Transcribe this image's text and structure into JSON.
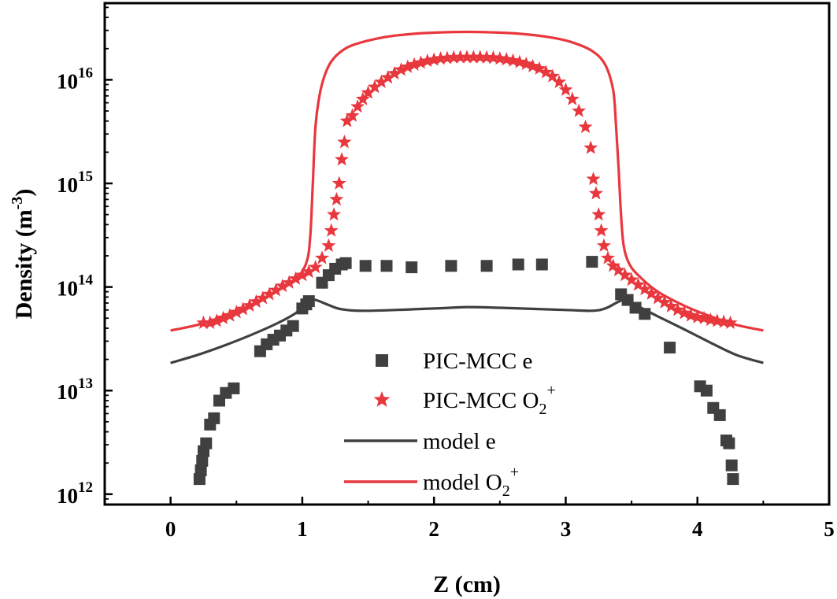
{
  "chart_data": {
    "type": "scatter",
    "title": "",
    "xlabel": "Z (cm)",
    "ylabel": "Density (m^-3)",
    "ylabel_parts": {
      "main": "Density (m",
      "sup": "-3",
      "close": ")"
    },
    "xlim": [
      -0.5,
      5
    ],
    "ylim_log10": [
      11.9,
      16.74
    ],
    "yscale": "log",
    "xticks": [
      0,
      1,
      2,
      3,
      4,
      5
    ],
    "xtick_labels": [
      "0",
      "1",
      "2",
      "3",
      "4",
      "5"
    ],
    "yticks_log10": [
      12,
      13,
      14,
      15,
      16
    ],
    "ytick_labels": [
      {
        "base": "10",
        "exp": "12"
      },
      {
        "base": "10",
        "exp": "13"
      },
      {
        "base": "10",
        "exp": "14"
      },
      {
        "base": "10",
        "exp": "15"
      },
      {
        "base": "10",
        "exp": "16"
      }
    ],
    "grid": false,
    "legend_position": "center",
    "colors": {
      "electron": "#404040",
      "ion": "#e8373d",
      "axis": "#000000"
    },
    "series": [
      {
        "name": "PIC-MCC e",
        "label_parts": {
          "main": "PIC-MCC e",
          "sub": "",
          "sup": ""
        },
        "kind": "markers",
        "marker": "square",
        "color": "#404040",
        "x": [
          0.22,
          0.23,
          0.24,
          0.25,
          0.27,
          0.3,
          0.33,
          0.37,
          0.42,
          0.48,
          0.68,
          0.73,
          0.78,
          0.83,
          0.88,
          0.93,
          1.0,
          1.03,
          1.05,
          1.15,
          1.2,
          1.25,
          1.3,
          1.33,
          1.48,
          1.64,
          1.83,
          2.13,
          2.4,
          2.64,
          2.82,
          3.2,
          3.42,
          3.47,
          3.53,
          3.6,
          3.79,
          4.02,
          4.07,
          4.12,
          4.17,
          4.22,
          4.24,
          4.26,
          4.27
        ],
        "y": [
          1400000000000.0,
          1700000000000.0,
          2100000000000.0,
          2600000000000.0,
          3100000000000.0,
          4700000000000.0,
          5400000000000.0,
          8000000000000.0,
          9500000000000.0,
          10500000000000.0,
          24000000000000.0,
          28000000000000.0,
          31000000000000.0,
          34000000000000.0,
          38000000000000.0,
          42000000000000.0,
          62000000000000.0,
          68000000000000.0,
          73000000000000.0,
          110000000000000.0,
          130000000000000.0,
          150000000000000.0,
          165000000000000.0,
          170000000000000.0,
          160000000000000.0,
          160000000000000.0,
          155000000000000.0,
          160000000000000.0,
          160000000000000.0,
          165000000000000.0,
          165000000000000.0,
          175000000000000.0,
          85000000000000.0,
          75000000000000.0,
          63000000000000.0,
          55000000000000.0,
          26000000000000.0,
          11000000000000.0,
          10000000000000.0,
          6800000000000.0,
          5800000000000.0,
          3300000000000.0,
          3100000000000.0,
          1900000000000.0,
          1400000000000.0
        ]
      },
      {
        "name": "PIC-MCC O2+",
        "label_parts": {
          "main": "PIC-MCC O",
          "sub": "2",
          "sup": "+"
        },
        "kind": "markers",
        "marker": "star",
        "color": "#e8373d",
        "x": [
          0.25,
          0.3,
          0.35,
          0.4,
          0.45,
          0.5,
          0.55,
          0.6,
          0.65,
          0.7,
          0.75,
          0.8,
          0.85,
          0.9,
          0.95,
          1.0,
          1.05,
          1.1,
          1.15,
          1.2,
          1.22,
          1.24,
          1.26,
          1.28,
          1.3,
          1.32,
          1.34,
          1.38,
          1.42,
          1.46,
          1.5,
          1.55,
          1.6,
          1.65,
          1.7,
          1.75,
          1.8,
          1.85,
          1.9,
          1.95,
          2.0,
          2.05,
          2.1,
          2.15,
          2.2,
          2.25,
          2.3,
          2.35,
          2.4,
          2.45,
          2.5,
          2.55,
          2.6,
          2.65,
          2.7,
          2.75,
          2.8,
          2.85,
          2.9,
          2.95,
          3.0,
          3.05,
          3.1,
          3.15,
          3.19,
          3.21,
          3.23,
          3.25,
          3.27,
          3.29,
          3.32,
          3.36,
          3.4,
          3.45,
          3.5,
          3.55,
          3.6,
          3.65,
          3.7,
          3.75,
          3.8,
          3.85,
          3.9,
          3.95,
          4.0,
          4.05,
          4.1,
          4.15,
          4.2,
          4.25
        ],
        "y": [
          45000000000000.0,
          45000000000000.0,
          47000000000000.0,
          50000000000000.0,
          53000000000000.0,
          57000000000000.0,
          61000000000000.0,
          66000000000000.0,
          72000000000000.0,
          78000000000000.0,
          85000000000000.0,
          93000000000000.0,
          102000000000000.0,
          110000000000000.0,
          120000000000000.0,
          130000000000000.0,
          140000000000000.0,
          155000000000000.0,
          190000000000000.0,
          250000000000000.0,
          350000000000000.0,
          500000000000000.0,
          700000000000000.0,
          1000000000000000.0,
          1700000000000000.0,
          2500000000000000.0,
          4000000000000000.0,
          4500000000000000.0,
          5500000000000000.0,
          6500000000000000.0,
          7500000000000000.0,
          8500000000000000.0,
          9500000000000000.0,
          1.05e+16,
          1.15e+16,
          1.25e+16,
          1.33e+16,
          1.4e+16,
          1.46e+16,
          1.52e+16,
          1.56e+16,
          1.6e+16,
          1.62e+16,
          1.64e+16,
          1.65e+16,
          1.65e+16,
          1.65e+16,
          1.65e+16,
          1.64e+16,
          1.63e+16,
          1.6e+16,
          1.57e+16,
          1.53e+16,
          1.48e+16,
          1.42e+16,
          1.35e+16,
          1.28e+16,
          1.18e+16,
          1.08e+16,
          9500000000000000.0,
          8000000000000000.0,
          6500000000000000.0,
          5000000000000000.0,
          3500000000000000.0,
          2200000000000000.0,
          1100000000000000.0,
          800000000000000.0,
          500000000000000.0,
          350000000000000.0,
          250000000000000.0,
          190000000000000.0,
          160000000000000.0,
          145000000000000.0,
          130000000000000.0,
          117000000000000.0,
          105000000000000.0,
          95000000000000.0,
          86000000000000.0,
          78000000000000.0,
          71000000000000.0,
          65000000000000.0,
          60000000000000.0,
          56000000000000.0,
          53000000000000.0,
          51000000000000.0,
          50000000000000.0,
          48000000000000.0,
          47000000000000.0,
          46000000000000.0,
          45000000000000.0
        ]
      },
      {
        "name": "model e",
        "label_parts": {
          "main": "model e",
          "sub": "",
          "sup": ""
        },
        "kind": "line",
        "color": "#404040",
        "x": [
          0.0,
          0.2,
          0.4,
          0.6,
          0.8,
          0.95,
          1.05,
          1.1,
          1.2,
          1.3,
          1.5,
          2.0,
          2.25,
          2.5,
          3.0,
          3.2,
          3.3,
          3.4,
          3.45,
          3.55,
          3.7,
          3.9,
          4.1,
          4.3,
          4.5
        ],
        "y": [
          18500000000000.0,
          22000000000000.0,
          27000000000000.0,
          34000000000000.0,
          44000000000000.0,
          56000000000000.0,
          73000000000000.0,
          75000000000000.0,
          67000000000000.0,
          61000000000000.0,
          59000000000000.0,
          62000000000000.0,
          64000000000000.0,
          63000000000000.0,
          60000000000000.0,
          59000000000000.0,
          62000000000000.0,
          72000000000000.0,
          74000000000000.0,
          65000000000000.0,
          52000000000000.0,
          39000000000000.0,
          29000000000000.0,
          22000000000000.0,
          18500000000000.0
        ]
      },
      {
        "name": "model O2+",
        "label_parts": {
          "main": "model O",
          "sub": "2",
          "sup": "+"
        },
        "kind": "line",
        "color": "#e8373d",
        "x": [
          0.0,
          0.2,
          0.4,
          0.6,
          0.8,
          0.95,
          1.03,
          1.06,
          1.08,
          1.1,
          1.13,
          1.17,
          1.22,
          1.3,
          1.4,
          1.6,
          1.8,
          2.0,
          2.25,
          2.5,
          2.7,
          2.9,
          3.05,
          3.2,
          3.3,
          3.36,
          3.38,
          3.4,
          3.42,
          3.44,
          3.48,
          3.55,
          3.7,
          3.9,
          4.1,
          4.3,
          4.5
        ],
        "y": [
          38000000000000.0,
          43000000000000.0,
          52000000000000.0,
          66000000000000.0,
          90000000000000.0,
          120000000000000.0,
          170000000000000.0,
          300000000000000.0,
          1000000000000000.0,
          3500000000000000.0,
          7000000000000000.0,
          1.1e+16,
          1.5e+16,
          1.9e+16,
          2.2e+16,
          2.55e+16,
          2.75e+16,
          2.85e+16,
          2.9e+16,
          2.85e+16,
          2.75e+16,
          2.55e+16,
          2.3e+16,
          1.9e+16,
          1.4e+16,
          8000000000000000.0,
          4000000000000000.0,
          1500000000000000.0,
          500000000000000.0,
          250000000000000.0,
          170000000000000.0,
          130000000000000.0,
          90000000000000.0,
          66000000000000.0,
          52000000000000.0,
          43000000000000.0,
          38000000000000.0
        ]
      }
    ]
  }
}
